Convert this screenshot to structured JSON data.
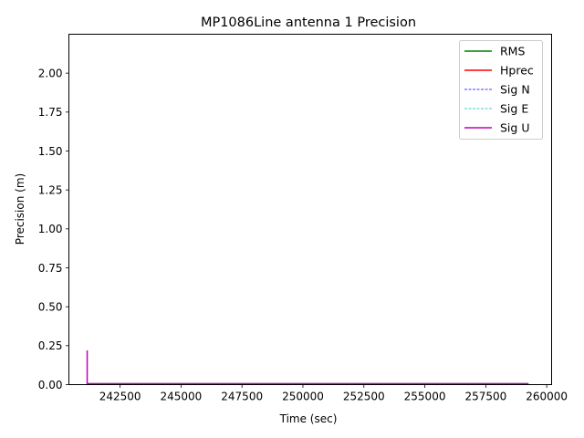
{
  "chart_data": {
    "type": "line",
    "title": "MP1086Line antenna 1 Precision",
    "xlabel": "Time (sec)",
    "ylabel": "Precision (m)",
    "xlim": [
      240400,
      260200
    ],
    "ylim": [
      0,
      2.25
    ],
    "xticks": [
      242500,
      245000,
      247500,
      250000,
      252500,
      255000,
      257500,
      260000
    ],
    "yticks": [
      "0.00",
      "0.25",
      "0.50",
      "0.75",
      "1.00",
      "1.25",
      "1.50",
      "1.75",
      "2.00"
    ],
    "grid": false,
    "legend_position": "top-right",
    "series": [
      {
        "name": "RMS",
        "color": "#008000",
        "style": "solid",
        "x": [
          241150,
          241160,
          259250
        ],
        "y": [
          0.005,
          0.005,
          0.005
        ]
      },
      {
        "name": "Hprec",
        "color": "#ff0000",
        "style": "solid",
        "x": [
          241150,
          241160,
          259250
        ],
        "y": [
          0.004,
          0.004,
          0.004
        ]
      },
      {
        "name": "Sig N",
        "color": "#0000ff",
        "style": "dashed",
        "x": [
          241150,
          241160,
          259250
        ],
        "y": [
          0.003,
          0.003,
          0.003
        ]
      },
      {
        "name": "Sig E",
        "color": "#00bfbf",
        "style": "dashed",
        "x": [
          241150,
          241160,
          259250
        ],
        "y": [
          0.003,
          0.003,
          0.003
        ]
      },
      {
        "name": "Sig U",
        "color": "#bf00bf",
        "style": "solid",
        "x": [
          241150,
          241150,
          241160,
          259250
        ],
        "y": [
          0.22,
          0.006,
          0.006,
          0.006
        ]
      }
    ]
  }
}
